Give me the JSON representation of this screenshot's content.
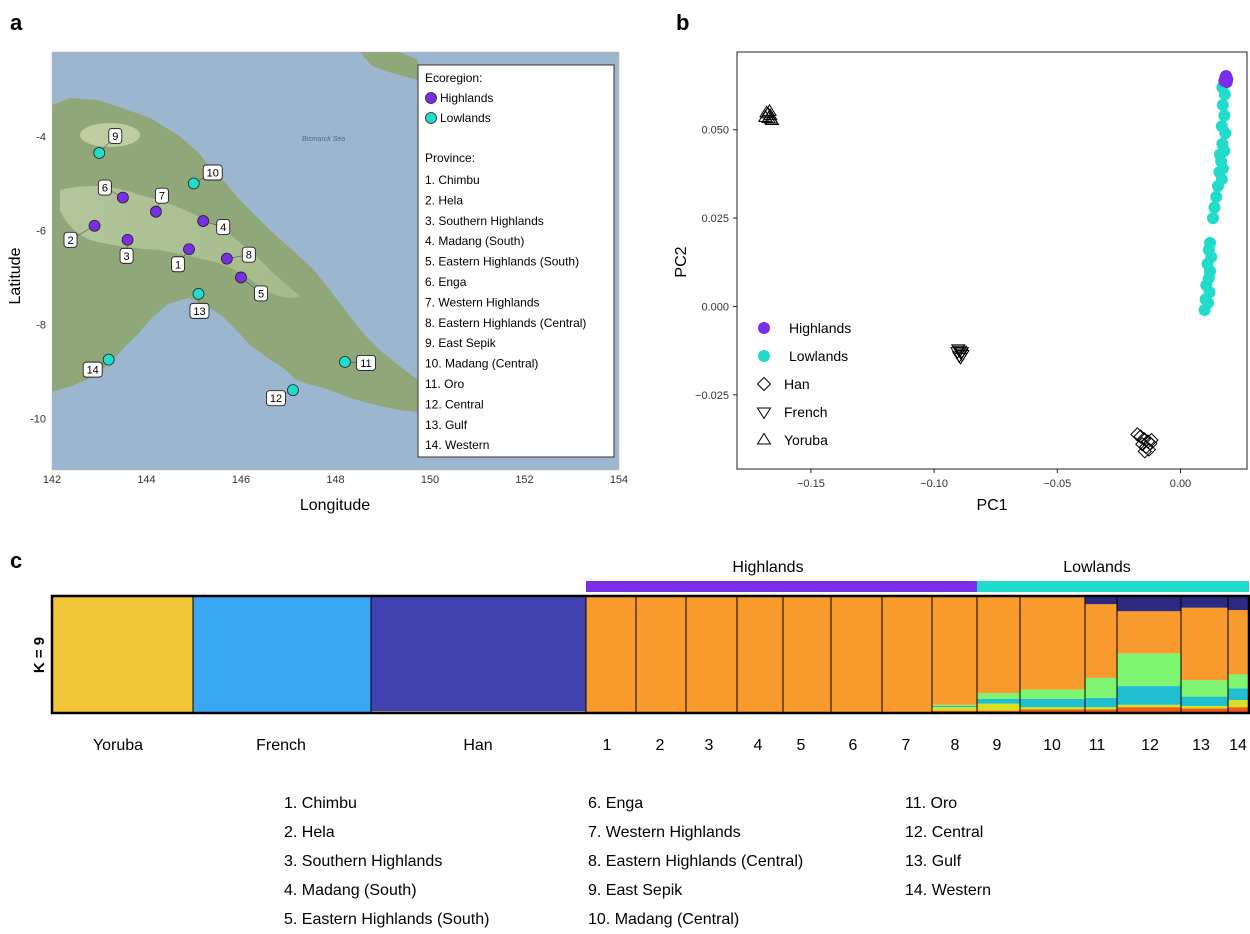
{
  "panels": {
    "a": "a",
    "b": "b",
    "c": "c"
  },
  "colors": {
    "highlands": "#7a2ee6",
    "lowlands": "#22dccb",
    "bar_highlands": "#7a2ee6",
    "bar_lowlands": "#22dccb"
  },
  "chart_data": [
    {
      "type": "scatter",
      "panel": "a",
      "xlabel": "Longitude",
      "ylabel": "Latitude",
      "xlim": [
        142,
        154
      ],
      "ylim": [
        -11.1,
        -2.2
      ],
      "xticks": [
        142,
        144,
        146,
        148,
        150,
        152,
        154
      ],
      "yticks": [
        -4,
        -6,
        -8,
        -10
      ],
      "map_labels": {
        "sea": "Bismarck Sea"
      },
      "legend": {
        "ecoregion_title": "Ecoregion:",
        "ecoregions": [
          "Highlands",
          "Lowlands"
        ],
        "province_title": "Province:",
        "provinces": [
          "1. Chimbu",
          "2. Hela",
          "3. Southern Highlands",
          "4. Madang (South)",
          "5. Eastern Highlands (South)",
          "6. Enga",
          "7. Western Highlands",
          "8. Eastern Highlands (Central)",
          "9. East Sepik",
          "10. Madang (Central)",
          "11. Oro",
          "12. Central",
          "13. Gulf",
          "14. Western"
        ]
      },
      "points": [
        {
          "label": "1",
          "lon": 144.9,
          "lat": -6.4,
          "region": "Highlands"
        },
        {
          "label": "2",
          "lon": 142.9,
          "lat": -5.9,
          "region": "Highlands"
        },
        {
          "label": "3",
          "lon": 143.6,
          "lat": -6.2,
          "region": "Highlands"
        },
        {
          "label": "4",
          "lon": 145.2,
          "lat": -5.8,
          "region": "Highlands"
        },
        {
          "label": "5",
          "lon": 146.0,
          "lat": -7.0,
          "region": "Highlands"
        },
        {
          "label": "6",
          "lon": 143.5,
          "lat": -5.3,
          "region": "Highlands"
        },
        {
          "label": "7",
          "lon": 144.2,
          "lat": -5.6,
          "region": "Highlands"
        },
        {
          "label": "8",
          "lon": 145.7,
          "lat": -6.6,
          "region": "Highlands"
        },
        {
          "label": "9",
          "lon": 143.0,
          "lat": -4.35,
          "region": "Lowlands"
        },
        {
          "label": "10",
          "lon": 145.0,
          "lat": -5.0,
          "region": "Lowlands"
        },
        {
          "label": "11",
          "lon": 148.2,
          "lat": -8.8,
          "region": "Lowlands"
        },
        {
          "label": "12",
          "lon": 147.1,
          "lat": -9.4,
          "region": "Lowlands"
        },
        {
          "label": "13",
          "lon": 145.1,
          "lat": -7.35,
          "region": "Lowlands"
        },
        {
          "label": "14",
          "lon": 143.2,
          "lat": -8.75,
          "region": "Lowlands"
        }
      ]
    },
    {
      "type": "scatter",
      "panel": "b",
      "xlabel": "PC1",
      "ylabel": "PC2",
      "xlim": [
        -0.18,
        0.027
      ],
      "ylim": [
        -0.046,
        0.072
      ],
      "xticks": [
        -0.15,
        -0.1,
        -0.05,
        0.0
      ],
      "xtick_labels": [
        "−0.15",
        "−0.10",
        "−0.05",
        "0.00"
      ],
      "yticks": [
        0.05,
        0.025,
        0.0,
        -0.025
      ],
      "ytick_labels": [
        "0.050",
        "0.025",
        "0.000",
        "−0.025"
      ],
      "legend_position": "bottom-left",
      "series": [
        {
          "name": "Highlands",
          "marker": "circle-filled",
          "points": [
            [
              0.0185,
              0.0652
            ],
            [
              0.0182,
              0.0647
            ],
            [
              0.019,
              0.0643
            ],
            [
              0.0178,
              0.0638
            ],
            [
              0.0188,
              0.0635
            ]
          ]
        },
        {
          "name": "Lowlands",
          "marker": "circle-filled",
          "points": [
            [
              0.017,
              0.062
            ],
            [
              0.018,
              0.06
            ],
            [
              0.0172,
              0.057
            ],
            [
              0.0178,
              0.054
            ],
            [
              0.0168,
              0.051
            ],
            [
              0.0182,
              0.049
            ],
            [
              0.017,
              0.046
            ],
            [
              0.0178,
              0.044
            ],
            [
              0.016,
              0.043
            ],
            [
              0.0165,
              0.041
            ],
            [
              0.0172,
              0.039
            ],
            [
              0.0158,
              0.038
            ],
            [
              0.0168,
              0.036
            ],
            [
              0.0152,
              0.034
            ],
            [
              0.0145,
              0.031
            ],
            [
              0.0138,
              0.028
            ],
            [
              0.0132,
              0.025
            ],
            [
              0.012,
              0.018
            ],
            [
              0.0115,
              0.016
            ],
            [
              0.0125,
              0.014
            ],
            [
              0.011,
              0.012
            ],
            [
              0.012,
              0.01
            ],
            [
              0.0115,
              0.008
            ],
            [
              0.0105,
              0.006
            ],
            [
              0.0118,
              0.004
            ],
            [
              0.0102,
              0.002
            ],
            [
              0.0112,
              0.001
            ],
            [
              0.0098,
              -0.001
            ]
          ]
        },
        {
          "name": "Han",
          "marker": "diamond-open",
          "points": [
            [
              -0.0148,
              -0.0375
            ],
            [
              -0.0132,
              -0.0382
            ],
            [
              -0.0155,
              -0.039
            ],
            [
              -0.0122,
              -0.0388
            ],
            [
              -0.014,
              -0.0398
            ],
            [
              -0.0162,
              -0.0368
            ],
            [
              -0.0128,
              -0.0405
            ],
            [
              -0.0145,
              -0.041
            ],
            [
              -0.0175,
              -0.0362
            ],
            [
              -0.0118,
              -0.0378
            ]
          ]
        },
        {
          "name": "French",
          "marker": "triangle-down-open",
          "points": [
            [
              -0.0905,
              -0.0128
            ],
            [
              -0.089,
              -0.0132
            ],
            [
              -0.0895,
              -0.0124
            ],
            [
              -0.0885,
              -0.0136
            ],
            [
              -0.0898,
              -0.014
            ],
            [
              -0.0902,
              -0.012
            ],
            [
              -0.0888,
              -0.0128
            ],
            [
              -0.0893,
              -0.0144
            ]
          ]
        },
        {
          "name": "Yoruba",
          "marker": "triangle-up-open",
          "points": [
            [
              -0.168,
              0.0548
            ],
            [
              -0.1665,
              0.054
            ],
            [
              -0.1672,
              0.0532
            ],
            [
              -0.1658,
              0.0526
            ],
            [
              -0.1685,
              0.0535
            ],
            [
              -0.1668,
              0.0552
            ],
            [
              -0.1675,
              0.0545
            ],
            [
              -0.1662,
              0.053
            ]
          ]
        }
      ]
    },
    {
      "type": "bar",
      "panel": "c",
      "stacked": true,
      "k_label": "K = 9",
      "group_headers": [
        "Highlands",
        "Lowlands"
      ],
      "components": [
        "yoruba-yellow",
        "french-blue",
        "han-indigo",
        "png-orange",
        "light-green",
        "cyan",
        "dark-navy",
        "red-orange",
        "yellow-green"
      ],
      "component_colors": [
        "#f2c537",
        "#3aa7f5",
        "#4143b0",
        "#f99a2d",
        "#7df570",
        "#1fbfcf",
        "#2b2a80",
        "#ef5a1c",
        "#d8e022"
      ],
      "populations": [
        {
          "label": "Yoruba",
          "proportions": [
            1.0,
            0,
            0,
            0,
            0,
            0,
            0,
            0,
            0
          ]
        },
        {
          "label": "French",
          "proportions": [
            0,
            1.0,
            0,
            0,
            0,
            0,
            0,
            0,
            0
          ]
        },
        {
          "label": "Han",
          "proportions": [
            0,
            0,
            0.98,
            0,
            0,
            0.005,
            0,
            0,
            0.015
          ]
        },
        {
          "label": "1",
          "proportions": [
            0,
            0,
            0,
            1.0,
            0,
            0,
            0,
            0,
            0
          ]
        },
        {
          "label": "2",
          "proportions": [
            0,
            0,
            0,
            1.0,
            0,
            0,
            0,
            0,
            0
          ]
        },
        {
          "label": "3",
          "proportions": [
            0,
            0,
            0,
            1.0,
            0,
            0,
            0,
            0,
            0
          ]
        },
        {
          "label": "4",
          "proportions": [
            0,
            0,
            0,
            1.0,
            0,
            0,
            0,
            0,
            0
          ]
        },
        {
          "label": "5",
          "proportions": [
            0,
            0,
            0,
            1.0,
            0,
            0,
            0,
            0,
            0
          ]
        },
        {
          "label": "6",
          "proportions": [
            0,
            0,
            0,
            1.0,
            0,
            0,
            0,
            0,
            0
          ]
        },
        {
          "label": "7",
          "proportions": [
            0,
            0,
            0,
            1.0,
            0,
            0,
            0,
            0,
            0
          ]
        },
        {
          "label": "8",
          "proportions": [
            0,
            0,
            0,
            0.93,
            0.01,
            0.01,
            0,
            0.02,
            0.03
          ]
        },
        {
          "label": "9",
          "proportions": [
            0,
            0,
            0,
            0.83,
            0.05,
            0.04,
            0,
            0.02,
            0.06
          ]
        },
        {
          "label": "10",
          "proportions": [
            0,
            0,
            0,
            0.79,
            0.08,
            0.07,
            0.01,
            0.03,
            0.02
          ]
        },
        {
          "label": "11",
          "proportions": [
            0,
            0,
            0,
            0.63,
            0.17,
            0.08,
            0.07,
            0.03,
            0.02
          ]
        },
        {
          "label": "12",
          "proportions": [
            0,
            0,
            0,
            0.36,
            0.28,
            0.16,
            0.13,
            0.05,
            0.02
          ]
        },
        {
          "label": "13",
          "proportions": [
            0,
            0,
            0,
            0.62,
            0.14,
            0.08,
            0.1,
            0.04,
            0.02
          ]
        },
        {
          "label": "14",
          "proportions": [
            0,
            0,
            0,
            0.55,
            0.12,
            0.1,
            0.12,
            0.05,
            0.06
          ]
        }
      ]
    }
  ],
  "province_key": [
    [
      "1. Chimbu",
      "2. Hela",
      "3. Southern Highlands",
      "4. Madang (South)",
      "5. Eastern Highlands (South)"
    ],
    [
      "6. Enga",
      "7. Western Highlands",
      "8. Eastern Highlands (Central)",
      "9. East Sepik",
      "10. Madang (Central)"
    ],
    [
      "11. Oro",
      "12. Central",
      "13. Gulf",
      "14. Western"
    ]
  ]
}
